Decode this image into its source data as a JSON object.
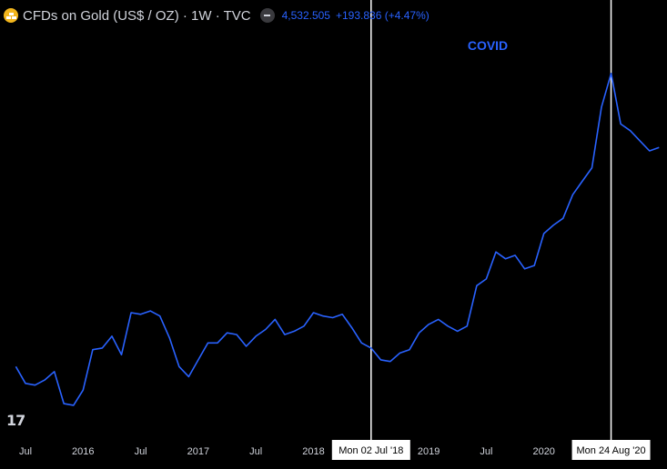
{
  "header": {
    "title": "CFDs on Gold (US$ / OZ) · 1W · TVC",
    "price": "4,532.505",
    "change": "+193.836 (+4.47%)"
  },
  "icons": {
    "symbol": "gold-bars-icon",
    "status": "minus-icon",
    "logo": "tradingview-logo-icon"
  },
  "colors": {
    "background": "#000000",
    "line": "#2962ff",
    "text": "#d1d4dc",
    "marker": "#ffffff"
  },
  "logo_text": "17",
  "chart_data": {
    "type": "line",
    "title": "",
    "xlabel": "",
    "ylabel": "",
    "grid": false,
    "x": [
      "2015-06",
      "2015-07",
      "2015-08",
      "2015-09",
      "2015-10",
      "2015-11",
      "2015-12",
      "2016-01",
      "2016-02",
      "2016-03",
      "2016-04",
      "2016-05",
      "2016-06",
      "2016-07",
      "2016-08",
      "2016-09",
      "2016-10",
      "2016-11",
      "2016-12",
      "2017-01",
      "2017-02",
      "2017-03",
      "2017-04",
      "2017-05",
      "2017-06",
      "2017-07",
      "2017-08",
      "2017-09",
      "2017-10",
      "2017-11",
      "2017-12",
      "2018-01",
      "2018-02",
      "2018-03",
      "2018-04",
      "2018-05",
      "2018-06",
      "2018-07",
      "2018-08",
      "2018-09",
      "2018-10",
      "2018-11",
      "2018-12",
      "2019-01",
      "2019-02",
      "2019-03",
      "2019-04",
      "2019-05",
      "2019-06",
      "2019-07",
      "2019-08",
      "2019-09",
      "2019-10",
      "2019-11",
      "2019-12",
      "2020-01",
      "2020-02",
      "2020-03",
      "2020-04",
      "2020-05",
      "2020-06",
      "2020-07",
      "2020-08",
      "2020-09",
      "2020-10",
      "2020-11",
      "2020-12",
      "2021-01"
    ],
    "values": [
      1180,
      1130,
      1125,
      1140,
      1165,
      1070,
      1065,
      1110,
      1230,
      1235,
      1270,
      1215,
      1340,
      1335,
      1345,
      1330,
      1265,
      1180,
      1150,
      1200,
      1250,
      1250,
      1280,
      1275,
      1240,
      1270,
      1290,
      1320,
      1275,
      1285,
      1300,
      1340,
      1330,
      1325,
      1335,
      1295,
      1250,
      1235,
      1200,
      1195,
      1220,
      1230,
      1280,
      1305,
      1320,
      1300,
      1285,
      1300,
      1420,
      1440,
      1520,
      1500,
      1510,
      1470,
      1480,
      1575,
      1600,
      1620,
      1690,
      1730,
      1770,
      1950,
      2050,
      1900,
      1880,
      1850,
      1820,
      1830
    ],
    "x_ticks": [
      {
        "x": "2015-07",
        "label": "Jul"
      },
      {
        "x": "2016-01",
        "label": "2016"
      },
      {
        "x": "2016-07",
        "label": "Jul"
      },
      {
        "x": "2017-01",
        "label": "2017"
      },
      {
        "x": "2017-07",
        "label": "Jul"
      },
      {
        "x": "2018-01",
        "label": "2018"
      },
      {
        "x": "2019-01",
        "label": "2019"
      },
      {
        "x": "2019-07",
        "label": "Jul"
      },
      {
        "x": "2020-01",
        "label": "2020"
      }
    ],
    "markers": [
      {
        "x": "2018-07",
        "label": "Mon 02 Jul '18"
      },
      {
        "x": "2020-08",
        "label": "Mon 24 Aug '20"
      }
    ],
    "annotations": [
      {
        "text": "COVID"
      }
    ],
    "ylim": [
      1000,
      2160
    ]
  }
}
